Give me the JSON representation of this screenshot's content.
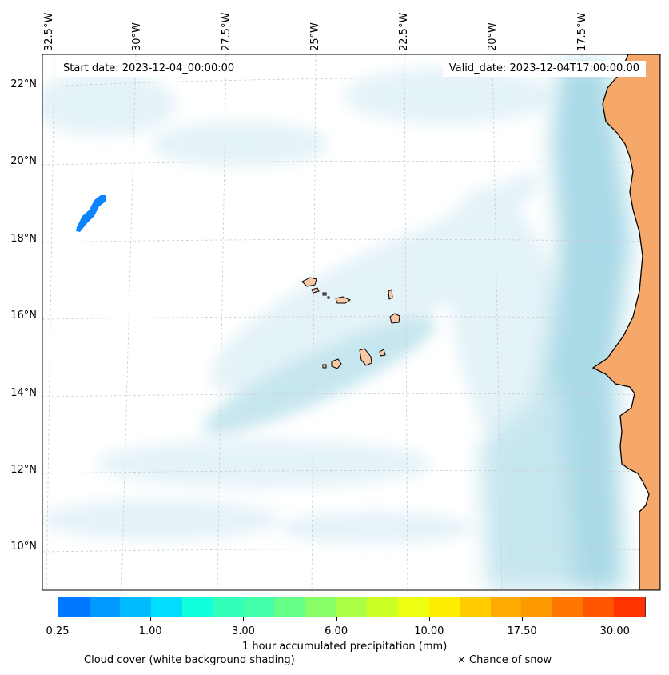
{
  "map": {
    "start_date": "Start date: 2023-12-04_00:00:00",
    "valid_date": "Valid_date: 2023-12-04T17:00:00.00",
    "lon_labels": [
      "32.5°W",
      "30°W",
      "27.5°W",
      "25°W",
      "22.5°W",
      "20°W",
      "17.5°W"
    ],
    "lat_labels": [
      "22°N",
      "20°N",
      "18°N",
      "16°N",
      "14°N",
      "12°N",
      "10°N"
    ],
    "colors": {
      "ocean": "#ffffff",
      "cloud_light": "#e4f3f8",
      "cloud_medium": "#c6e6ef",
      "cloud_heavy": "#a9d9e6",
      "land": "#f6a86a",
      "island": "#f8c9a4",
      "coastline": "#000000",
      "precip_blob": "#0a84ff"
    }
  },
  "colorbar": {
    "colors": [
      "#0077ff",
      "#0099ff",
      "#00bbff",
      "#00ddff",
      "#11ffdd",
      "#33ffbb",
      "#44ffaa",
      "#66ff88",
      "#88ff66",
      "#aaff44",
      "#ccff22",
      "#eeff11",
      "#ffee00",
      "#ffcc00",
      "#ffaa00",
      "#ff9900",
      "#ff7700",
      "#ff5500",
      "#ff3300"
    ],
    "tick_labels": [
      "0.25",
      "1.00",
      "3.00",
      "6.00",
      "10.00",
      "17.50",
      "30.00"
    ],
    "label": "1 hour accumulated precipitation (mm)"
  },
  "legend": {
    "cloud_text": "Cloud cover (white background shading)",
    "snow_text": "× Chance of snow"
  }
}
